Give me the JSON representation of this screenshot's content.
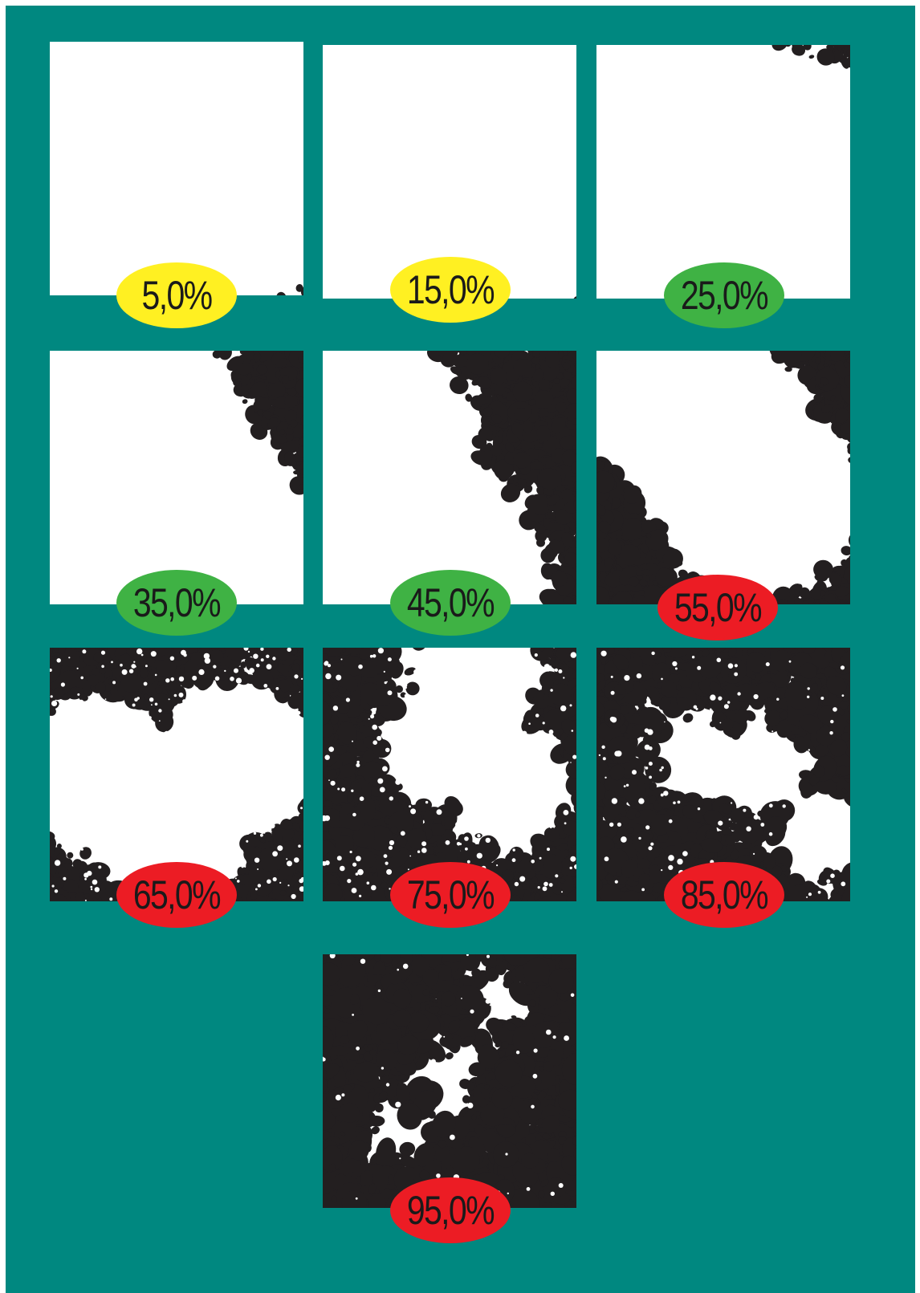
{
  "colors": {
    "background": "#008880",
    "foliage": "#231f20",
    "sky": "#ffffff",
    "low": "#fff022",
    "medium": "#3fb244",
    "high": "#ec1c24"
  },
  "panels": [
    {
      "label": "5,0%",
      "cover": 0.05,
      "color": "low"
    },
    {
      "label": "15,0%",
      "cover": 0.15,
      "color": "low"
    },
    {
      "label": "25,0%",
      "cover": 0.25,
      "color": "medium"
    },
    {
      "label": "35,0%",
      "cover": 0.35,
      "color": "medium"
    },
    {
      "label": "45,0%",
      "cover": 0.45,
      "color": "medium"
    },
    {
      "label": "55,0%",
      "cover": 0.55,
      "color": "high"
    },
    {
      "label": "65,0%",
      "cover": 0.65,
      "color": "high"
    },
    {
      "label": "75,0%",
      "cover": 0.75,
      "color": "high"
    },
    {
      "label": "85,0%",
      "cover": 0.85,
      "color": "high"
    },
    {
      "label": "95,0%",
      "cover": 0.95,
      "color": "high"
    }
  ]
}
